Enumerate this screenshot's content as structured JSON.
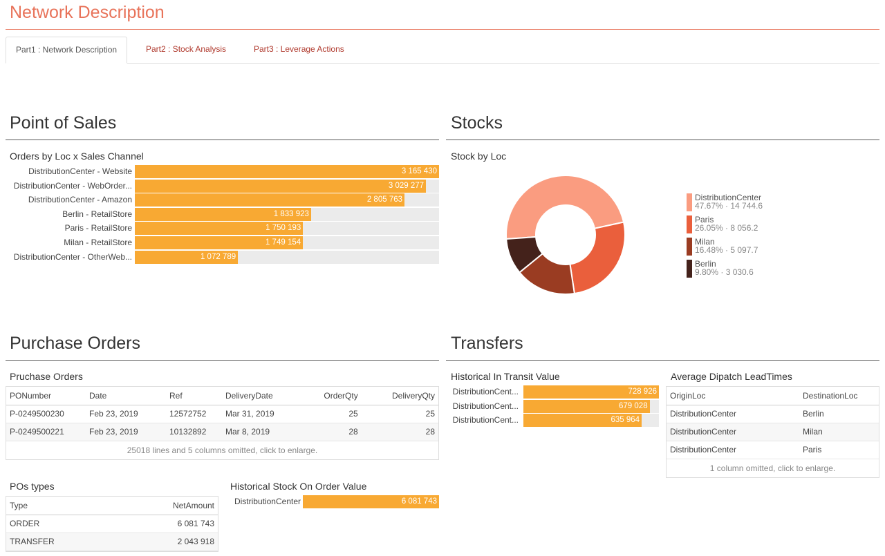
{
  "title": "Network Description",
  "tabs": [
    {
      "label": "Part1 : Network Description",
      "active": true
    },
    {
      "label": "Part2 : Stock Analysis"
    },
    {
      "label": "Part3 : Leverage Actions"
    }
  ],
  "point_of_sales": {
    "title": "Point of Sales",
    "chart_title": "Orders by Loc x Sales Channel",
    "rows": [
      {
        "label": "DistributionCenter - Website",
        "value": 3165430,
        "display": "3 165 430"
      },
      {
        "label": "DistributionCenter - WebOrder...",
        "value": 3029277,
        "display": "3 029 277"
      },
      {
        "label": "DistributionCenter - Amazon",
        "value": 2805763,
        "display": "2 805 763"
      },
      {
        "label": "Berlin - RetailStore",
        "value": 1833923,
        "display": "1 833 923"
      },
      {
        "label": "Paris - RetailStore",
        "value": 1750193,
        "display": "1 750 193"
      },
      {
        "label": "Milan - RetailStore",
        "value": 1749154,
        "display": "1 749 154"
      },
      {
        "label": "DistributionCenter - OtherWeb...",
        "value": 1072789,
        "display": "1 072 789"
      }
    ]
  },
  "stocks": {
    "title": "Stocks",
    "chart_title": "Stock by Loc",
    "slices": [
      {
        "label": "DistributionCenter",
        "pct": "47.67%",
        "value": 14744.6,
        "display": "14 744.6",
        "color": "#fa9c80"
      },
      {
        "label": "Paris",
        "pct": "26.05%",
        "value": 8056.2,
        "display": "8 056.2",
        "color": "#ea5f3c"
      },
      {
        "label": "Milan",
        "pct": "16.48%",
        "value": 5097.7,
        "display": "5 097.7",
        "color": "#9a3c22"
      },
      {
        "label": "Berlin",
        "pct": "9.80%",
        "value": 3030.6,
        "display": "3 030.6",
        "color": "#44221b"
      }
    ]
  },
  "purchase_orders": {
    "title": "Purchase Orders",
    "table_title": "Pruchase Orders",
    "columns": [
      "PONumber",
      "Date",
      "Ref",
      "DeliveryDate",
      "OrderQty",
      "DeliveryQty"
    ],
    "rows": [
      [
        "P-0249500230",
        "Feb 23, 2019",
        "12572752",
        "Mar 31, 2019",
        "25",
        "25"
      ],
      [
        "P-0249500221",
        "Feb 23, 2019",
        "10132892",
        "Mar 8, 2019",
        "28",
        "28"
      ]
    ],
    "footer": "25018 lines and 5 columns omitted, click to enlarge."
  },
  "po_types": {
    "title": "POs types",
    "columns": [
      "Type",
      "NetAmount"
    ],
    "rows": [
      [
        "ORDER",
        "6 081 743"
      ],
      [
        "TRANSFER",
        "2 043 918"
      ]
    ]
  },
  "stock_on_order": {
    "title": "Historical Stock On Order Value",
    "rows": [
      {
        "label": "DistributionCenter",
        "value": 6081743,
        "display": "6 081 743"
      }
    ]
  },
  "transfers": {
    "title": "Transfers",
    "transit": {
      "title": "Historical In Transit Value",
      "rows": [
        {
          "label": "DistributionCent...",
          "value": 728926,
          "display": "728 926"
        },
        {
          "label": "DistributionCent...",
          "value": 679028,
          "display": "679 028"
        },
        {
          "label": "DistributionCent...",
          "value": 635964,
          "display": "635 964"
        }
      ]
    },
    "leadtimes": {
      "title": "Average Dipatch LeadTimes",
      "columns": [
        "OriginLoc",
        "DestinationLoc"
      ],
      "rows": [
        [
          "DistributionCenter",
          "Berlin"
        ],
        [
          "DistributionCenter",
          "Milan"
        ],
        [
          "DistributionCenter",
          "Paris"
        ]
      ],
      "footer": "1 column omitted, click to enlarge."
    }
  },
  "colors": {
    "accent": "#e8735a",
    "bar": "#f8a933",
    "track": "#ebebeb",
    "tab_link": "#b03a2e"
  }
}
